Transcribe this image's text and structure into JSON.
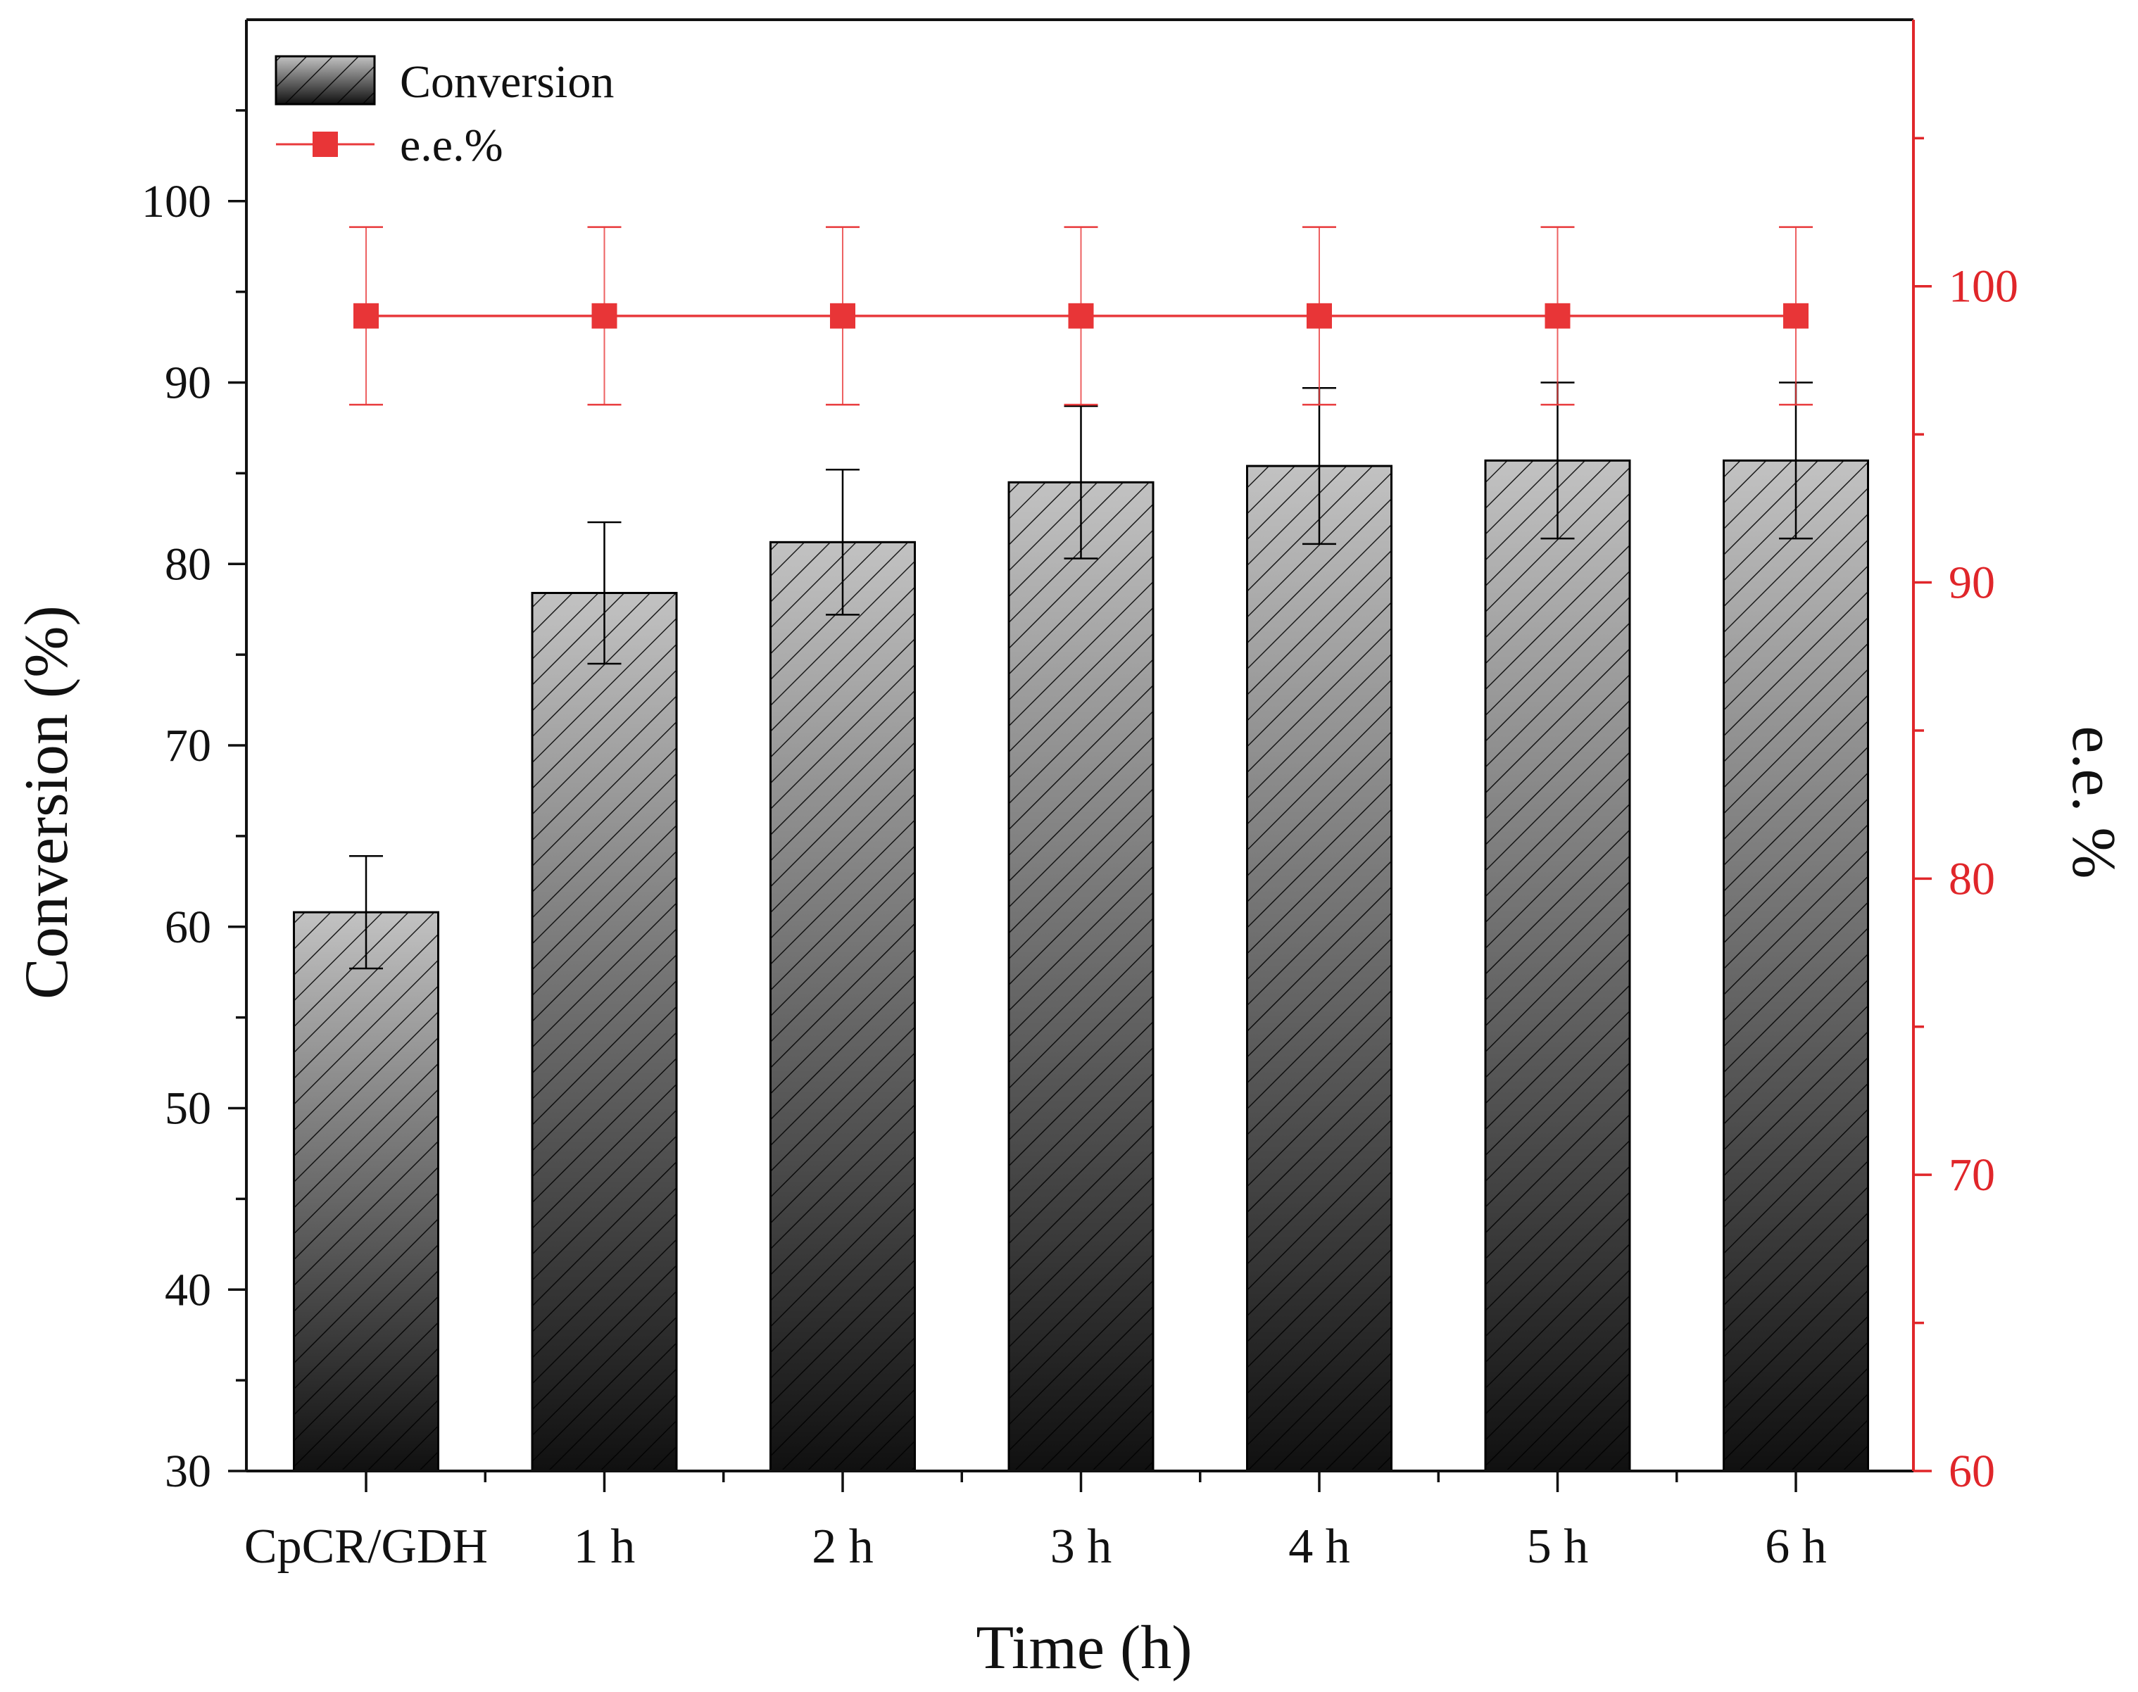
{
  "chart_data": {
    "type": "bar",
    "categories": [
      "CpCR/GDH",
      "1 h",
      "2 h",
      "3 h",
      "4 h",
      "5 h",
      "6 h"
    ],
    "xlabel": "Time (h)",
    "ylabel": "Conversion (%)",
    "y2label": "e.e. %",
    "ylim": [
      30,
      110
    ],
    "y2lim": [
      60,
      109
    ],
    "yticks": [
      30,
      40,
      50,
      60,
      70,
      80,
      90,
      100
    ],
    "y2ticks": [
      60,
      70,
      80,
      90,
      100
    ],
    "grid": false,
    "legend_position": "top-left",
    "series": [
      {
        "name": "Conversion",
        "type": "bar",
        "axis": "left",
        "values": [
          60.8,
          78.4,
          81.2,
          84.5,
          85.4,
          85.7,
          85.7
        ],
        "error": [
          3.1,
          3.9,
          4.0,
          4.2,
          4.3,
          4.3,
          4.3
        ]
      },
      {
        "name": "e.e.%",
        "type": "line",
        "axis": "right",
        "values": [
          99,
          99,
          99,
          99,
          99,
          99,
          99
        ],
        "error": [
          3,
          3,
          3,
          3,
          3,
          3,
          3
        ]
      }
    ],
    "colors": {
      "bar_top": "#c2c2c2",
      "bar_bottom": "#101010",
      "ee_line": "#e8393b",
      "ee_marker": "#e83537",
      "right_axis": "#e0262a",
      "left_axis": "#111111"
    }
  }
}
